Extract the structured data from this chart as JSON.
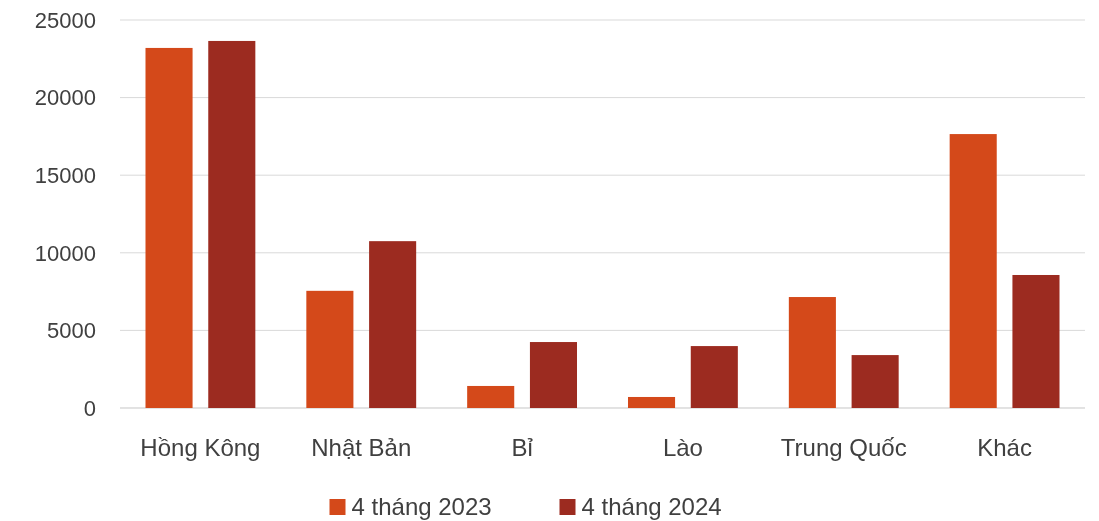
{
  "chart_data": {
    "type": "bar",
    "categories": [
      "Hồng Kông",
      "Nhật Bản",
      "Bỉ",
      "Lào",
      "Trung Quốc",
      "Khác"
    ],
    "series": [
      {
        "name": "4 tháng 2023",
        "color": "#d4491a",
        "values": [
          23200,
          7550,
          1420,
          710,
          7150,
          17650
        ]
      },
      {
        "name": "4 tháng 2024",
        "color": "#9c2b20",
        "values": [
          23650,
          10750,
          4250,
          3990,
          3410,
          8570
        ]
      }
    ],
    "ylim": [
      0,
      25000
    ],
    "yticks": [
      0,
      5000,
      10000,
      15000,
      20000,
      25000
    ],
    "grid": "y",
    "legend": "bottom"
  }
}
